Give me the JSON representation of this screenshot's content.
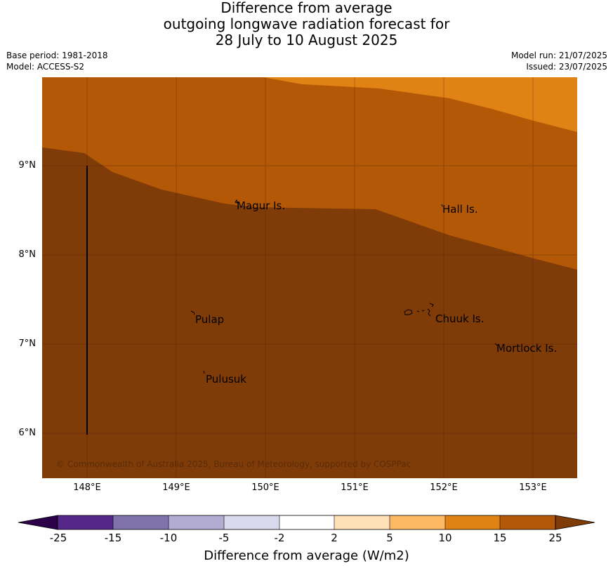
{
  "title": {
    "line1": "Difference from average",
    "line2": "outgoing longwave radiation forecast for",
    "line3": "28 July to 10 August 2025"
  },
  "meta": {
    "base_period": "Base period: 1981-2018",
    "model": "Model: ACCESS-S2",
    "model_run": "Model run: 21/07/2025",
    "issued": "Issued: 23/07/2025"
  },
  "map": {
    "lat_labels": [
      "9°N",
      "8°N",
      "7°N",
      "6°N"
    ],
    "lon_labels": [
      "148°E",
      "149°E",
      "150°E",
      "151°E",
      "152°E",
      "153°E"
    ],
    "places": [
      "Magur Is.",
      "Hall Is.",
      "Pulap",
      "Chuuk Is.",
      "Mortlock Is.",
      "Pulusuk"
    ],
    "copyright": "© Commonwealth of Australia 2025, Bureau of Meteorology, supported by COSPPac",
    "field_colors": {
      "15_to_25": "#7f3b08",
      "10_to_15": "#b35806",
      "5_to_10": "#e08214"
    }
  },
  "colorbar": {
    "label": "Difference from average (W/m2)",
    "ticks": [
      "-25",
      "-15",
      "-10",
      "-5",
      "-2",
      "2",
      "5",
      "10",
      "15",
      "25"
    ],
    "colors": [
      "#2d004b",
      "#542788",
      "#8073ac",
      "#b2abd2",
      "#d8daeb",
      "#ffffff",
      "#fee0b6",
      "#fdb863",
      "#e08214",
      "#b35806",
      "#7f3b08"
    ]
  }
}
